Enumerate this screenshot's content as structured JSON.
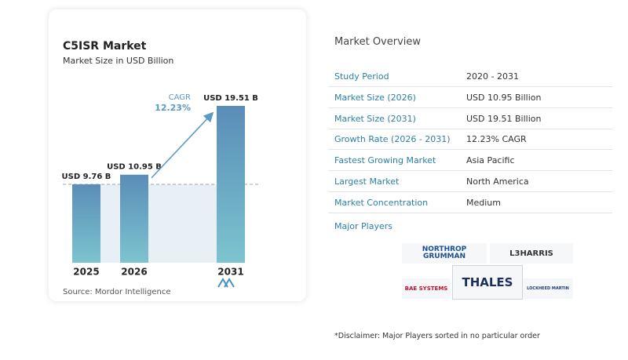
{
  "chart_data": {
    "type": "bar",
    "title": "C5ISR Market",
    "subtitle": "Market Size in USD Billion",
    "categories": [
      "2025",
      "2026",
      "2031"
    ],
    "values": [
      9.76,
      10.95,
      19.51
    ],
    "value_labels": [
      "USD 9.76 B",
      "USD 10.95 B",
      "USD 19.51 B"
    ],
    "annotation": {
      "label": "CAGR",
      "value": "12.23%"
    },
    "source": "Source: Mordor Intelligence"
  },
  "overview": {
    "title": "Market Overview",
    "rows": [
      [
        "Study Period",
        "2020 - 2031"
      ],
      [
        "Market Size (2026)",
        "USD 10.95 Billion"
      ],
      [
        "Market Size (2031)",
        "USD 19.51 Billion"
      ],
      [
        "Growth Rate (2026 - 2031)",
        "12.23% CAGR"
      ],
      [
        "Fastest Growing Market",
        "Asia Pacific"
      ],
      [
        "Largest Market",
        "North America"
      ],
      [
        "Market Concentration",
        "Medium"
      ]
    ],
    "players_title": "Major Players",
    "players": [
      "NORTHROP GRUMMAN",
      "L3HARRIS",
      "BAE SYSTEMS",
      "THALES",
      "LOCKHEED MARTIN"
    ],
    "disclaimer": "*Disclaimer: Major Players sorted in no particular order"
  }
}
